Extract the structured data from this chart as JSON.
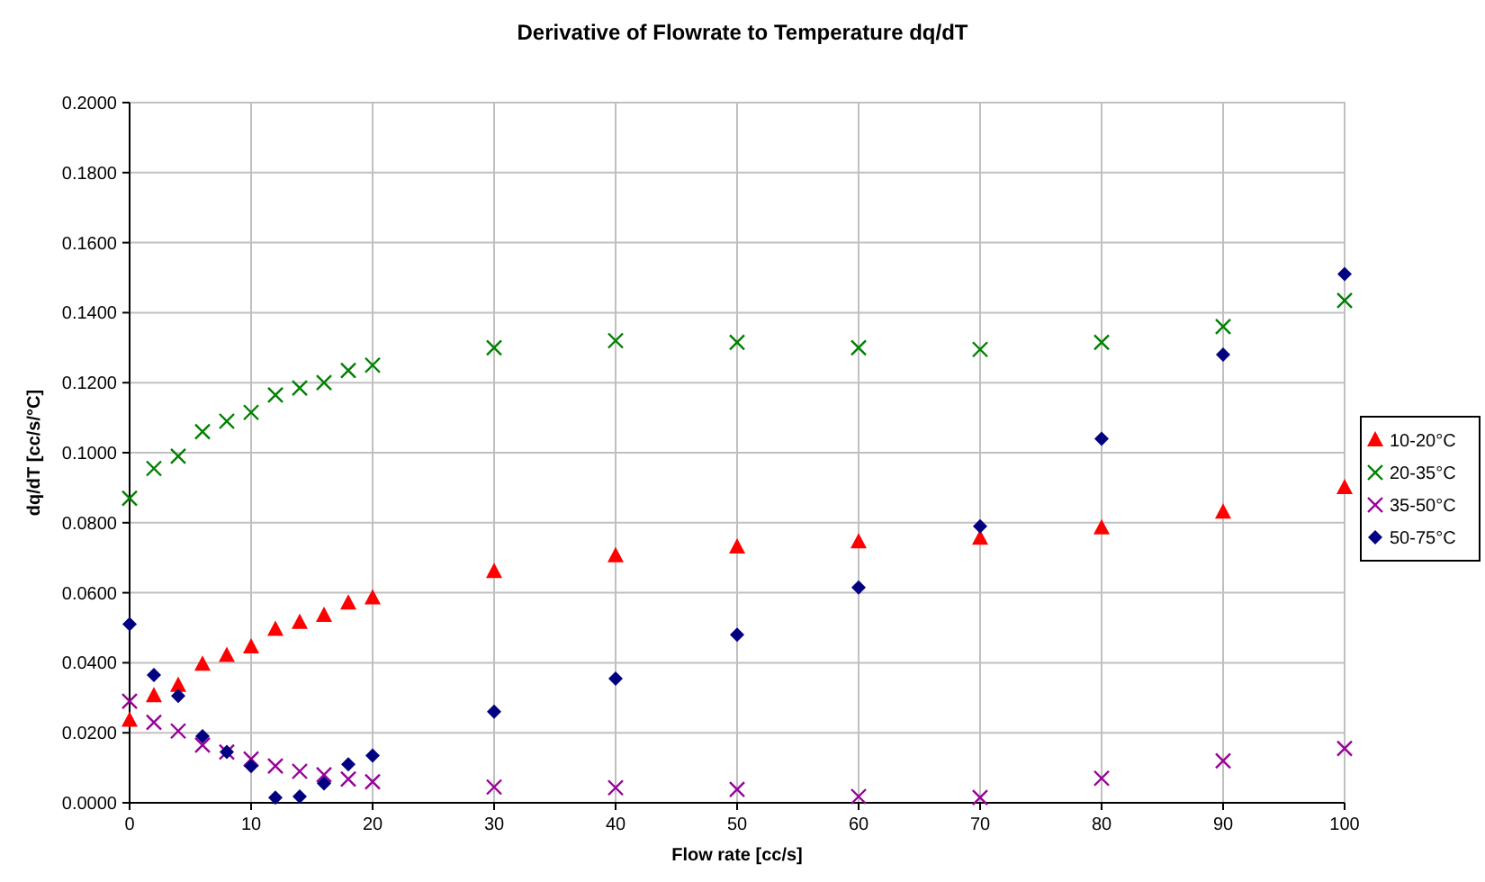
{
  "chart_data": {
    "type": "scatter",
    "title": "Derivative of Flowrate to Temperature dq/dT",
    "xlabel": "Flow rate [cc/s]",
    "ylabel": "dq/dT [cc/s/°C]",
    "x": [
      0,
      2,
      4,
      6,
      8,
      10,
      12,
      14,
      16,
      18,
      20,
      30,
      40,
      50,
      60,
      70,
      80,
      90,
      100
    ],
    "series": [
      {
        "name": "10-20°C",
        "color": "#ff0000",
        "marker": "triangle",
        "values": [
          0.0235,
          0.0305,
          0.0335,
          0.0395,
          0.042,
          0.0445,
          0.0495,
          0.0515,
          0.0535,
          0.057,
          0.0585,
          0.066,
          0.0705,
          0.073,
          0.0745,
          0.0755,
          0.0785,
          0.083,
          0.09
        ]
      },
      {
        "name": "20-35°C",
        "color": "#008000",
        "marker": "cross",
        "values": [
          0.087,
          0.0955,
          0.099,
          0.106,
          0.109,
          0.1115,
          0.1165,
          0.1185,
          0.12,
          0.1235,
          0.125,
          0.13,
          0.132,
          0.1315,
          0.13,
          0.1295,
          0.1315,
          0.136,
          0.1435
        ]
      },
      {
        "name": "35-50°C",
        "color": "#990099",
        "marker": "cross",
        "values": [
          0.029,
          0.023,
          0.0205,
          0.0165,
          0.0145,
          0.0125,
          0.0105,
          0.009,
          0.008,
          0.0068,
          0.006,
          0.0045,
          0.0043,
          0.0038,
          0.0018,
          0.0015,
          0.007,
          0.012,
          0.0155
        ]
      },
      {
        "name": "50-75°C",
        "color": "#000080",
        "marker": "diamond",
        "values": [
          0.051,
          0.0365,
          0.0305,
          0.019,
          0.0145,
          0.0105,
          0.0015,
          0.0018,
          0.0055,
          0.011,
          0.0135,
          0.026,
          0.0355,
          0.048,
          0.0615,
          0.079,
          0.104,
          0.128,
          0.151
        ]
      }
    ],
    "xlim": [
      0,
      100
    ],
    "xticks": [
      0,
      10,
      20,
      30,
      40,
      50,
      60,
      70,
      80,
      90,
      100
    ],
    "ylim": [
      0,
      0.2
    ],
    "yticks": [
      {
        "value": 0,
        "label": "0.0000"
      },
      {
        "value": 0.02,
        "label": "0.0200"
      },
      {
        "value": 0.04,
        "label": "0.0400"
      },
      {
        "value": 0.06,
        "label": "0.0600"
      },
      {
        "value": 0.08,
        "label": "0.0800"
      },
      {
        "value": 0.1,
        "label": "0.1000"
      },
      {
        "value": 0.12,
        "label": "0.1200"
      },
      {
        "value": 0.14,
        "label": "0.1400"
      },
      {
        "value": 0.16,
        "label": "0.1600"
      },
      {
        "value": 0.18,
        "label": "0.1800"
      },
      {
        "value": 0.2,
        "label": "0.2000"
      }
    ],
    "grid": true,
    "legend": "right"
  }
}
